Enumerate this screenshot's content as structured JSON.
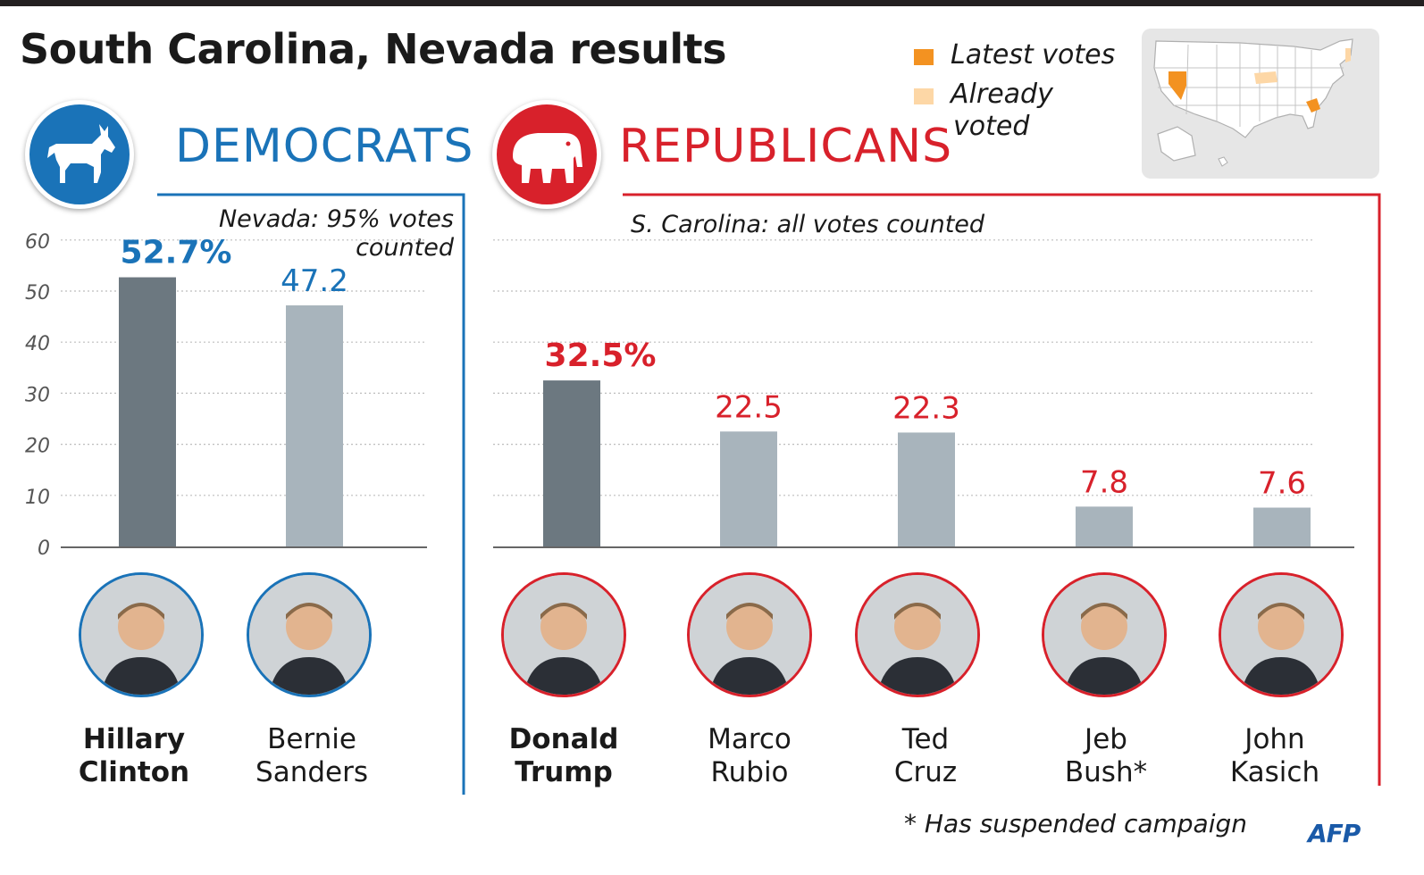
{
  "title": "South Carolina, Nevada results",
  "democrats": {
    "label": "DEMOCRATS",
    "note_line1": "Nevada: 95% votes",
    "note_line2": "counted",
    "color": "#1a73b8",
    "candidates": [
      {
        "first": "Hillary",
        "last": "Clinton",
        "winner": true
      },
      {
        "first": "Bernie",
        "last": "Sanders",
        "winner": false
      }
    ]
  },
  "republicans": {
    "label": "REPUBLICANS",
    "note": "S. Carolina: all votes counted",
    "color": "#d8212b",
    "candidates": [
      {
        "first": "Donald",
        "last": "Trump",
        "winner": true
      },
      {
        "first": "Marco",
        "last": "Rubio",
        "winner": false
      },
      {
        "first": "Ted",
        "last": "Cruz",
        "winner": false
      },
      {
        "first": "Jeb",
        "last": "Bush*",
        "winner": false
      },
      {
        "first": "John",
        "last": "Kasich",
        "winner": false
      }
    ]
  },
  "legend": {
    "latest": "Latest votes",
    "already_line1": "Already",
    "already_line2": "voted",
    "latest_color": "#f39221",
    "already_color": "#fdd7a6"
  },
  "map": {
    "latest_states": [
      "Nevada",
      "South Carolina"
    ],
    "already_states": [
      "Iowa",
      "New Hampshire"
    ]
  },
  "footnote": "* Has suspended campaign",
  "source": "AFP",
  "chart_data": [
    {
      "type": "bar",
      "title": "",
      "categories": [
        "Hillary Clinton",
        "Bernie Sanders"
      ],
      "values": [
        52.7,
        47.2
      ],
      "value_labels": [
        "52.7%",
        "47.2"
      ],
      "ylim": [
        0,
        60
      ],
      "yticks": [
        0,
        10,
        20,
        30,
        40,
        50,
        60
      ],
      "grid": true,
      "colors": [
        "#6c7880",
        "#a8b4bc"
      ],
      "label_color": "#1a73b8"
    },
    {
      "type": "bar",
      "title": "",
      "categories": [
        "Donald Trump",
        "Marco Rubio",
        "Ted Cruz",
        "Jeb Bush*",
        "John Kasich"
      ],
      "values": [
        32.5,
        22.5,
        22.3,
        7.8,
        7.6
      ],
      "value_labels": [
        "32.5%",
        "22.5",
        "22.3",
        "7.8",
        "7.6"
      ],
      "ylim": [
        0,
        60
      ],
      "grid": true,
      "colors": [
        "#6c7880",
        "#a8b4bc",
        "#a8b4bc",
        "#a8b4bc",
        "#a8b4bc"
      ],
      "label_color": "#d8212b"
    }
  ]
}
